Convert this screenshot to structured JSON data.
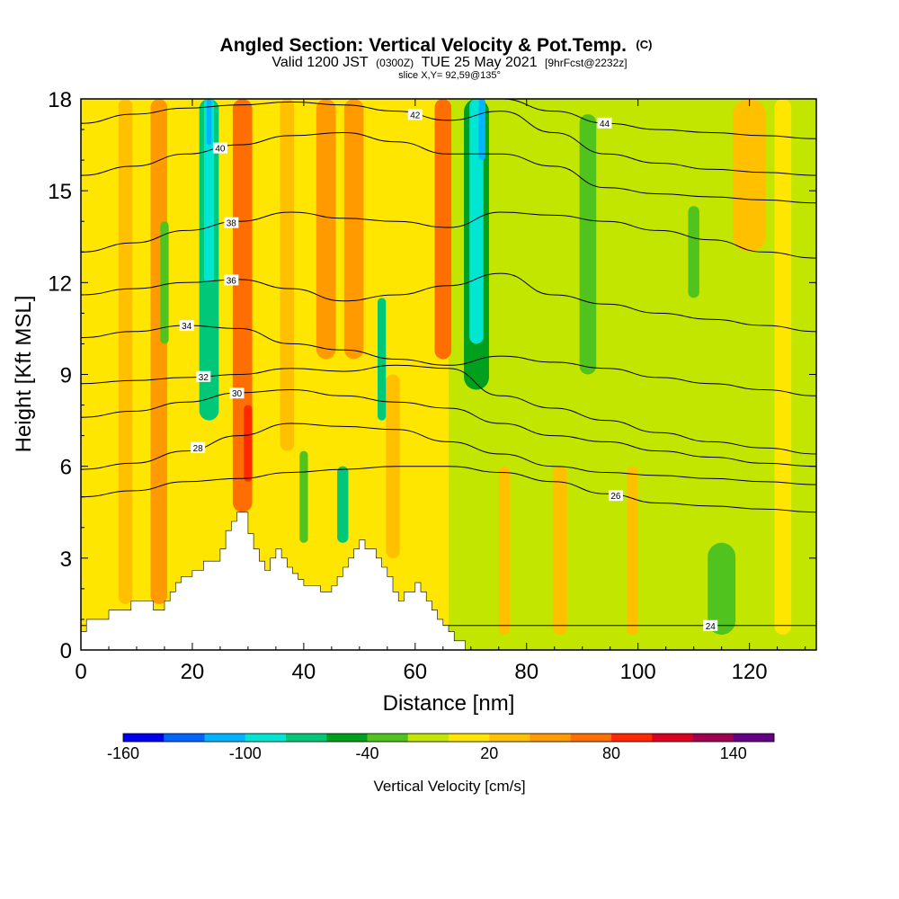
{
  "title": {
    "main": "Angled Section: Vertical Velocity & Pot.Temp.",
    "main_suffix": "(C)",
    "valid_prefix": "Valid 1200 JST",
    "valid_utc": "(0300Z)",
    "valid_date": "TUE 25 May 2021",
    "valid_fcst": "[9hrFcst@2232z]",
    "slice": "slice X,Y= 92,59@135°"
  },
  "colors": {
    "palette": [
      "#0000f0",
      "#0064ff",
      "#00b4ff",
      "#00e6d2",
      "#00c878",
      "#00a01e",
      "#50c31e",
      "#c3e600",
      "#ffe600",
      "#ffc000",
      "#ff9b00",
      "#ff6e00",
      "#ff2800",
      "#dc0020",
      "#a00050",
      "#640082"
    ],
    "terrain": "#ffffff",
    "contour": "#000000"
  },
  "chart_data": {
    "type": "heatmap",
    "xlabel": "Distance [nm]",
    "ylabel": "Height [Kft MSL]",
    "xlim": [
      0,
      132
    ],
    "ylim": [
      0,
      18
    ],
    "xticks": [
      "0",
      "20",
      "40",
      "60",
      "80",
      "100",
      "120"
    ],
    "yticks": [
      "0",
      "3",
      "6",
      "9",
      "12",
      "15",
      "18"
    ],
    "colorbar": {
      "label": "Vertical Velocity [cm/s]",
      "levels": [
        -160,
        -140,
        -120,
        -100,
        -80,
        -60,
        -40,
        -20,
        0,
        20,
        40,
        60,
        80,
        100,
        120,
        140,
        160
      ],
      "tick_labels": [
        "-160",
        "-100",
        "-40",
        "20",
        "80",
        "140"
      ],
      "tick_values": [
        -160,
        -100,
        -40,
        20,
        80,
        140
      ]
    },
    "terrain_profile": {
      "x": [
        0,
        1,
        1,
        5,
        5,
        9,
        9,
        13,
        13,
        15,
        15,
        16,
        16,
        17,
        17,
        18,
        18,
        20,
        20,
        22,
        22,
        25,
        25,
        26,
        26,
        27,
        27,
        28,
        28,
        30,
        30,
        31,
        31,
        32,
        32,
        33,
        33,
        34,
        34,
        35,
        35,
        36,
        36,
        37,
        37,
        38,
        38,
        39,
        39,
        40,
        40,
        43,
        43,
        45,
        45,
        46,
        46,
        47,
        47,
        48,
        48,
        49,
        49,
        50,
        50,
        51,
        51,
        53,
        53,
        54,
        54,
        55,
        55,
        56,
        56,
        57,
        57,
        58,
        58,
        60,
        60,
        61,
        61,
        62,
        62,
        63,
        63,
        64,
        64,
        65,
        65,
        66,
        66,
        67,
        67,
        69,
        69,
        72
      ],
      "y": [
        0.6,
        0.6,
        1.0,
        1.0,
        1.3,
        1.3,
        1.6,
        1.6,
        1.3,
        1.3,
        1.6,
        1.6,
        1.9,
        1.9,
        2.2,
        2.2,
        2.4,
        2.4,
        2.6,
        2.6,
        2.9,
        2.9,
        3.3,
        3.3,
        3.9,
        3.9,
        4.2,
        4.2,
        4.5,
        4.5,
        3.8,
        3.8,
        3.3,
        3.3,
        2.9,
        2.9,
        2.6,
        2.6,
        3.0,
        3.0,
        3.3,
        3.3,
        3.0,
        3.0,
        2.7,
        2.7,
        2.5,
        2.5,
        2.3,
        2.3,
        2.1,
        2.1,
        1.9,
        1.9,
        2.1,
        2.1,
        2.4,
        2.4,
        2.7,
        2.7,
        3.0,
        3.0,
        3.3,
        3.3,
        3.6,
        3.6,
        3.3,
        3.3,
        3.0,
        3.0,
        2.7,
        2.7,
        2.4,
        2.4,
        1.9,
        1.9,
        1.6,
        1.6,
        1.9,
        1.9,
        2.2,
        2.2,
        1.9,
        1.9,
        1.6,
        1.6,
        1.3,
        1.3,
        1.0,
        1.0,
        0.8,
        0.8,
        0.6,
        0.6,
        0.3,
        0.3,
        0.0,
        0.0
      ]
    },
    "updraft_columns": [
      {
        "x": 8,
        "w": 2.5,
        "y0": 1.5,
        "y1": 18,
        "value": 30
      },
      {
        "x": 14,
        "w": 3,
        "y0": 1.5,
        "y1": 18,
        "value": 40
      },
      {
        "x": 29,
        "w": 3.5,
        "y0": 4.5,
        "y1": 18,
        "value": 60
      },
      {
        "x": 30,
        "w": 1.5,
        "y0": 5.5,
        "y1": 8,
        "value": 85
      },
      {
        "x": 37,
        "w": 2.5,
        "y0": 6.5,
        "y1": 18,
        "value": 35
      },
      {
        "x": 44,
        "w": 3.5,
        "y0": 9.5,
        "y1": 18,
        "value": 45
      },
      {
        "x": 49,
        "w": 3.5,
        "y0": 9.5,
        "y1": 18,
        "value": 55
      },
      {
        "x": 65,
        "w": 3,
        "y0": 9.5,
        "y1": 18,
        "value": 65
      },
      {
        "x": 56,
        "w": 2.5,
        "y0": 3,
        "y1": 9,
        "value": 25
      },
      {
        "x": 76,
        "w": 2,
        "y0": 0.5,
        "y1": 6,
        "value": 25
      },
      {
        "x": 86,
        "w": 2.5,
        "y0": 0.5,
        "y1": 6,
        "value": 30
      },
      {
        "x": 99,
        "w": 2,
        "y0": 0.5,
        "y1": 6,
        "value": 25
      },
      {
        "x": 120,
        "w": 6,
        "y0": 13,
        "y1": 18,
        "value": 25
      },
      {
        "x": 126,
        "w": 3,
        "y0": 0.5,
        "y1": 18,
        "value": 15
      }
    ],
    "downdraft_columns": [
      {
        "x": 23,
        "w": 3.5,
        "y0": 7.5,
        "y1": 18,
        "value": -65
      },
      {
        "x": 23,
        "w": 1.8,
        "y0": 12,
        "y1": 18,
        "value": -100
      },
      {
        "x": 23,
        "w": 0.9,
        "y0": 16.5,
        "y1": 18,
        "value": -120
      },
      {
        "x": 71,
        "w": 4.5,
        "y0": 8.5,
        "y1": 18,
        "value": -60
      },
      {
        "x": 71,
        "w": 2.5,
        "y0": 10,
        "y1": 18,
        "value": -85
      },
      {
        "x": 72,
        "w": 1.2,
        "y0": 16,
        "y1": 18,
        "value": -110
      },
      {
        "x": 54,
        "w": 1.5,
        "y0": 7.5,
        "y1": 11.5,
        "value": -70
      },
      {
        "x": 47,
        "w": 2,
        "y0": 3.5,
        "y1": 6,
        "value": -75
      },
      {
        "x": 91,
        "w": 3,
        "y0": 9,
        "y1": 17.5,
        "value": -40
      },
      {
        "x": 110,
        "w": 2,
        "y0": 11.5,
        "y1": 14.5,
        "value": -40
      },
      {
        "x": 115,
        "w": 5,
        "y0": 0.5,
        "y1": 3.5,
        "value": -40
      },
      {
        "x": 15,
        "w": 1.5,
        "y0": 10,
        "y1": 14,
        "value": -25
      },
      {
        "x": 40,
        "w": 1.5,
        "y0": 3.5,
        "y1": 6.5,
        "value": -30
      }
    ],
    "theta_contours": [
      {
        "label": "24",
        "label_x": 113,
        "y": [
          0.8,
          0.8,
          0.8,
          0.8,
          0.8,
          0.8,
          0.8,
          0.8,
          0.8,
          0.8,
          0.8,
          0.8,
          0.8,
          0.8,
          0.8
        ]
      },
      {
        "label": "26",
        "label_x": 96,
        "y": [
          5.0,
          5.2,
          5.5,
          5.6,
          5.8,
          5.9,
          6.0,
          6.0,
          5.8,
          5.5,
          5.1,
          4.8,
          4.7,
          4.6,
          4.5
        ]
      },
      {
        "label": "28",
        "label_x": 21,
        "y": [
          5.9,
          6.1,
          6.5,
          7.0,
          7.4,
          7.3,
          7.2,
          6.8,
          6.4,
          6.0,
          5.8,
          5.7,
          5.6,
          5.5,
          5.4
        ]
      },
      {
        "label": "30",
        "label_x": 28,
        "y": [
          7.6,
          7.8,
          8.1,
          8.4,
          8.5,
          8.3,
          8.1,
          7.9,
          7.4,
          7.0,
          6.8,
          6.5,
          6.3,
          6.1,
          6.0
        ]
      },
      {
        "label": "32",
        "label_x": 22,
        "y": [
          8.7,
          8.8,
          8.9,
          9.0,
          9.2,
          9.1,
          9.3,
          9.2,
          8.3,
          7.9,
          7.5,
          7.1,
          6.8,
          6.6,
          6.4
        ]
      },
      {
        "label": "34",
        "label_x": 19,
        "y": [
          10.2,
          10.4,
          10.6,
          10.5,
          10.0,
          9.8,
          9.5,
          9.3,
          9.6,
          9.4,
          9.2,
          8.9,
          8.7,
          8.5,
          8.3
        ]
      },
      {
        "label": "36",
        "label_x": 27,
        "y": [
          11.6,
          11.8,
          12.0,
          12.1,
          11.8,
          11.4,
          11.6,
          11.9,
          12.3,
          11.6,
          11.3,
          11.0,
          10.8,
          10.6,
          10.4
        ]
      },
      {
        "label": "38",
        "label_x": 27,
        "y": [
          13.0,
          13.3,
          13.7,
          14.0,
          14.3,
          14.1,
          14.0,
          13.8,
          14.3,
          14.2,
          14.0,
          13.7,
          13.4,
          13.0,
          12.8
        ]
      },
      {
        "label": "40",
        "label_x": 25,
        "y": [
          15.5,
          15.8,
          16.2,
          16.5,
          16.8,
          16.9,
          16.6,
          16.2,
          16.2,
          15.8,
          15.1,
          14.9,
          14.8,
          14.7,
          14.6
        ]
      },
      {
        "label": "42",
        "label_x": 60,
        "y": [
          17.2,
          17.5,
          17.7,
          17.8,
          17.9,
          17.8,
          17.6,
          17.3,
          17.6,
          16.9,
          16.2,
          15.9,
          15.7,
          15.6,
          15.5
        ]
      },
      {
        "label": "44",
        "label_x": 94,
        "y": [
          18.0,
          18.0,
          18.0,
          18.0,
          18.0,
          18.0,
          18.0,
          18.0,
          18.0,
          17.6,
          17.2,
          17.0,
          16.9,
          16.8,
          16.7
        ]
      }
    ]
  }
}
